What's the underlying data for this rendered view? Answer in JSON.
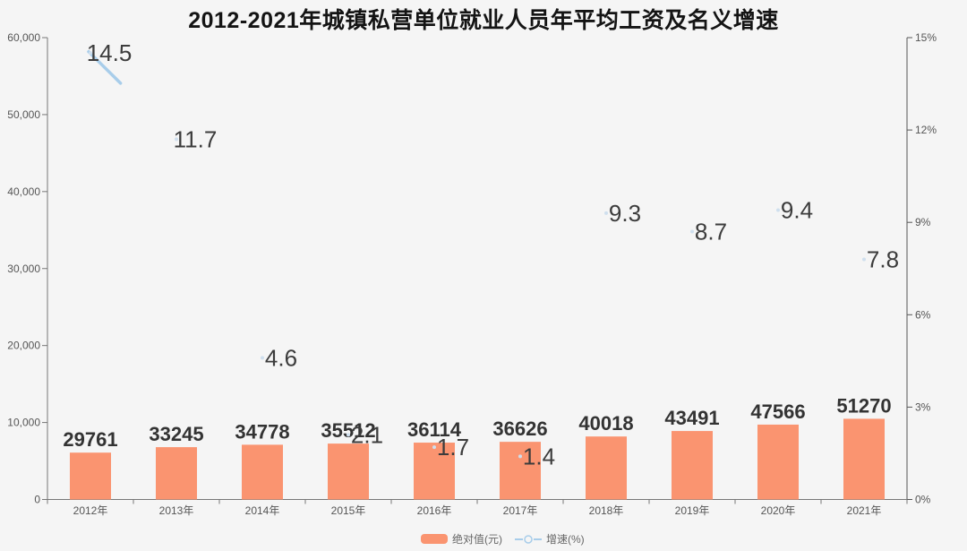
{
  "title": "2012-2021年城镇私营单位就业人员年平均工资及名义增速",
  "legend": {
    "bar_label": "绝对值(元)",
    "line_label": "增速(%)"
  },
  "colors": {
    "background": "#f5f5f5",
    "bar": "#fa9470",
    "line": "#a8cdea",
    "point": "#cfdfee",
    "title_text": "#141414",
    "bar_label": "#333333",
    "growth_label": "#3c3c3c",
    "axis_text": "#555555",
    "axis_line": "#777777",
    "right_axis_line": "#555555"
  },
  "chart_data": {
    "type": "bar+line",
    "title": "2012-2021年城镇私营单位就业人员年平均工资及名义增速",
    "categories": [
      "2012年",
      "2013年",
      "2014年",
      "2015年",
      "2016年",
      "2017年",
      "2018年",
      "2019年",
      "2020年",
      "2021年"
    ],
    "series": [
      {
        "name": "绝对值(元)",
        "type": "bar",
        "axis": "left",
        "values": [
          29761,
          33245,
          34778,
          35512,
          36114,
          36626,
          40018,
          43491,
          47566,
          51270
        ]
      },
      {
        "name": "增速(%)",
        "type": "line",
        "axis": "right",
        "values": [
          14.5,
          11.7,
          4.6,
          2.1,
          1.7,
          1.4,
          9.3,
          8.7,
          9.4,
          7.8
        ]
      }
    ],
    "left_axis": {
      "min": 0,
      "max": 60000,
      "ticks": [
        "0",
        "10,000",
        "20,000",
        "30,000",
        "40,000",
        "50,000",
        "60,000"
      ]
    },
    "right_axis": {
      "min": 0,
      "max": 15,
      "ticks": [
        "0%",
        "3%",
        "6%",
        "9%",
        "12%",
        "15%"
      ]
    },
    "grid": false,
    "legend_position": "bottom",
    "bar_display_axis_max": 293400,
    "line_visible_segment": {
      "from_index": 0,
      "to_index": 1,
      "fraction": 0.35
    }
  }
}
